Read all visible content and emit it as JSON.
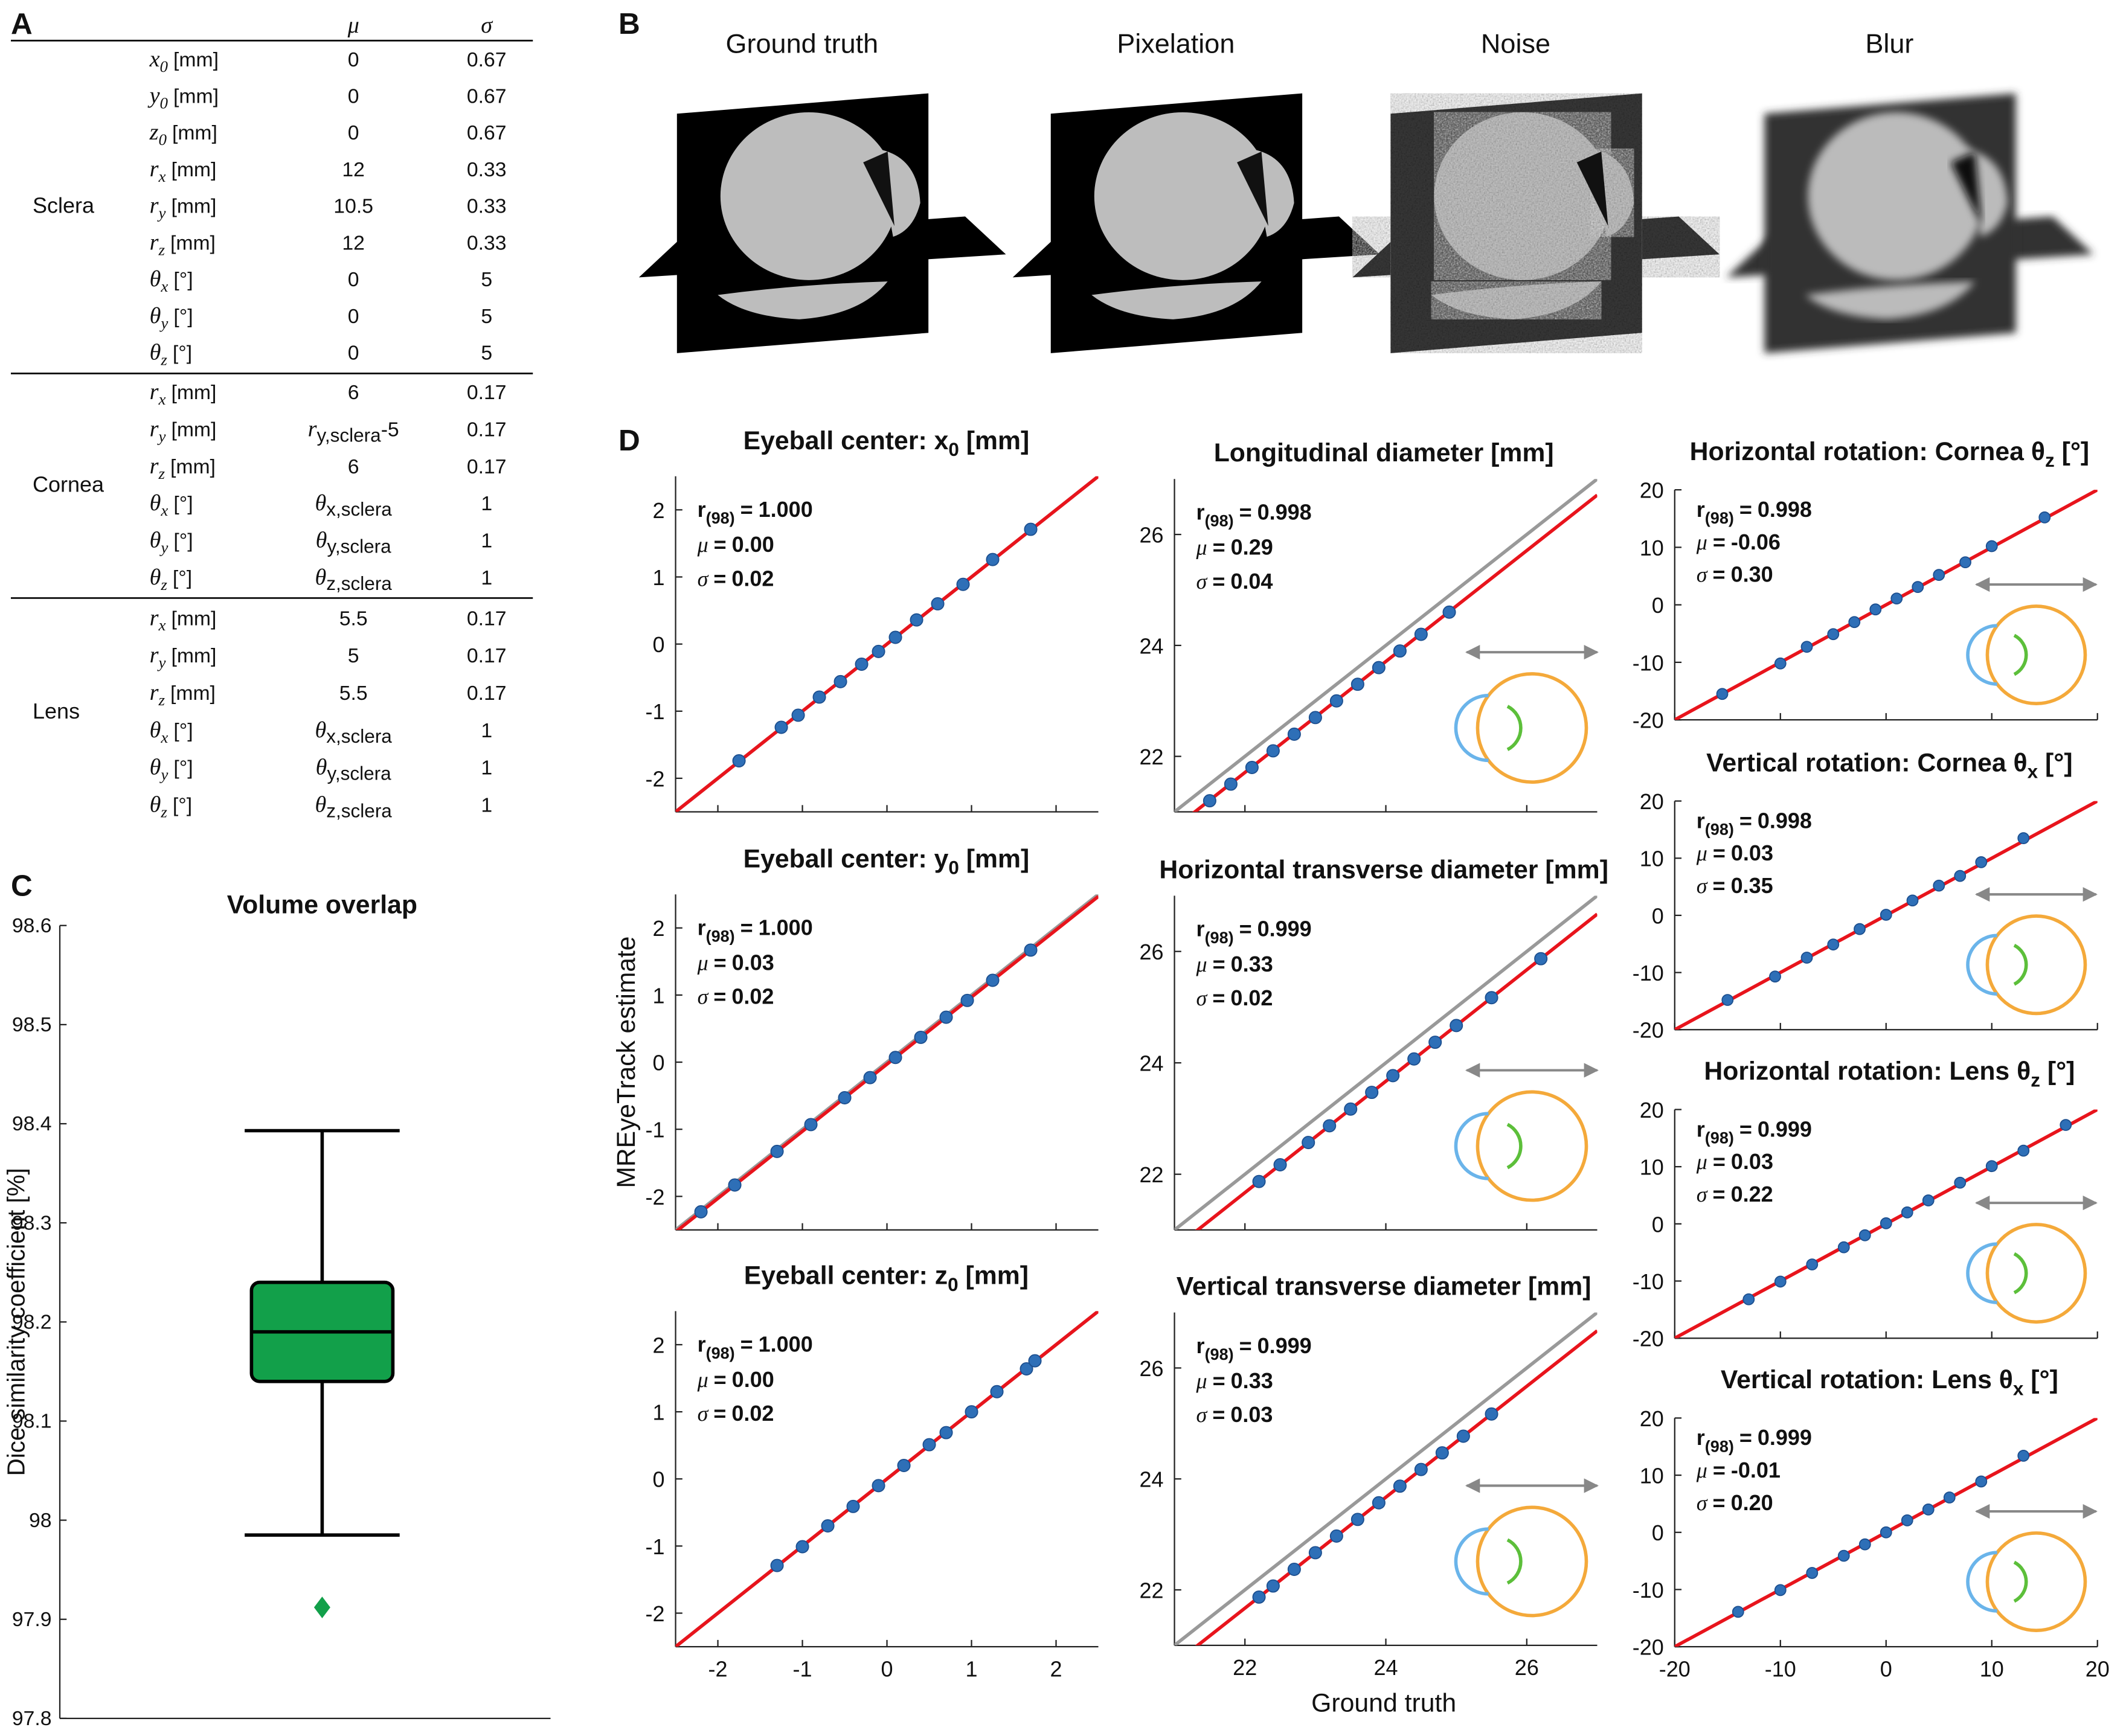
{
  "panel_labels": [
    "A",
    "B",
    "C",
    "D"
  ],
  "table": {
    "header": [
      "μ",
      "σ"
    ],
    "groups": [
      {
        "name": "Sclera",
        "rows": [
          {
            "param": {
              "sym": "x",
              "sub": "0",
              "unit": "[mm]"
            },
            "mu": "0",
            "sigma": "0.67"
          },
          {
            "param": {
              "sym": "y",
              "sub": "0",
              "unit": "[mm]"
            },
            "mu": "0",
            "sigma": "0.67"
          },
          {
            "param": {
              "sym": "z",
              "sub": "0",
              "unit": "[mm]"
            },
            "mu": "0",
            "sigma": "0.67"
          },
          {
            "param": {
              "sym": "r",
              "sub": "x",
              "unit": "[mm]"
            },
            "mu": "12",
            "sigma": "0.33"
          },
          {
            "param": {
              "sym": "r",
              "sub": "y",
              "unit": "[mm]"
            },
            "mu": "10.5",
            "sigma": "0.33"
          },
          {
            "param": {
              "sym": "r",
              "sub": "z",
              "unit": "[mm]"
            },
            "mu": "12",
            "sigma": "0.33"
          },
          {
            "param": {
              "sym": "θ",
              "sub": "x",
              "unit": "[°]"
            },
            "mu": "0",
            "sigma": "5"
          },
          {
            "param": {
              "sym": "θ",
              "sub": "y",
              "unit": "[°]"
            },
            "mu": "0",
            "sigma": "5"
          },
          {
            "param": {
              "sym": "θ",
              "sub": "z",
              "unit": "[°]"
            },
            "mu": "0",
            "sigma": "5"
          }
        ]
      },
      {
        "name": "Cornea",
        "rows": [
          {
            "param": {
              "sym": "r",
              "sub": "x",
              "unit": "[mm]"
            },
            "mu": "6",
            "sigma": "0.17"
          },
          {
            "param": {
              "sym": "r",
              "sub": "y",
              "unit": "[mm]"
            },
            "mu": {
              "sym": "r",
              "sub": "y,sclera",
              "suffix": "-5"
            },
            "sigma": "0.17"
          },
          {
            "param": {
              "sym": "r",
              "sub": "z",
              "unit": "[mm]"
            },
            "mu": "6",
            "sigma": "0.17"
          },
          {
            "param": {
              "sym": "θ",
              "sub": "x",
              "unit": "[°]"
            },
            "mu": {
              "sym": "θ",
              "sub": "x,sclera"
            },
            "sigma": "1"
          },
          {
            "param": {
              "sym": "θ",
              "sub": "y",
              "unit": "[°]"
            },
            "mu": {
              "sym": "θ",
              "sub": "y,sclera"
            },
            "sigma": "1"
          },
          {
            "param": {
              "sym": "θ",
              "sub": "z",
              "unit": "[°]"
            },
            "mu": {
              "sym": "θ",
              "sub": "z,sclera"
            },
            "sigma": "1"
          }
        ]
      },
      {
        "name": "Lens",
        "rows": [
          {
            "param": {
              "sym": "r",
              "sub": "x",
              "unit": "[mm]"
            },
            "mu": "5.5",
            "sigma": "0.17"
          },
          {
            "param": {
              "sym": "r",
              "sub": "y",
              "unit": "[mm]"
            },
            "mu": "5",
            "sigma": "0.17"
          },
          {
            "param": {
              "sym": "r",
              "sub": "z",
              "unit": "[mm]"
            },
            "mu": "5.5",
            "sigma": "0.17"
          },
          {
            "param": {
              "sym": "θ",
              "sub": "x",
              "unit": "[°]"
            },
            "mu": {
              "sym": "θ",
              "sub": "x,sclera"
            },
            "sigma": "1"
          },
          {
            "param": {
              "sym": "θ",
              "sub": "y",
              "unit": "[°]"
            },
            "mu": {
              "sym": "θ",
              "sub": "y,sclera"
            },
            "sigma": "1"
          },
          {
            "param": {
              "sym": "θ",
              "sub": "z",
              "unit": "[°]"
            },
            "mu": {
              "sym": "θ",
              "sub": "z,sclera"
            },
            "sigma": "1"
          }
        ]
      }
    ]
  },
  "images": {
    "titles": [
      "Ground truth",
      "Pixelation",
      "Noise",
      "Blur"
    ]
  },
  "boxplot": {
    "type": "box",
    "title": "Volume overlap",
    "ylabel": "Dice similarity coefficient [%]",
    "ylim": [
      97.8,
      98.6
    ],
    "yticks": [
      97.8,
      97.9,
      98,
      98.1,
      98.2,
      98.3,
      98.4,
      98.5,
      98.6
    ],
    "whisker_low": 97.985,
    "q1": 98.14,
    "median": 98.19,
    "q3": 98.24,
    "whisker_high": 98.393,
    "outliers": [
      97.912
    ],
    "color": "#12a04a"
  },
  "scatter": {
    "type": "scatter",
    "ylabel": "MREyeTrack estimate",
    "xlabel": "Ground truth",
    "stat_symbols": [
      "r",
      "μ",
      "σ"
    ],
    "stat_sub": "(98)",
    "equals": "=",
    "point_color": "#2e6fb7",
    "fit_color": "#e8141c",
    "identity_color": "#999999",
    "subplots": [
      {
        "title": {
          "text": "Eyeball center: x",
          "sub": "0",
          "suffix": " [mm]"
        },
        "stats": [
          "1.000",
          "0.00",
          "0.02"
        ],
        "xlim": [
          -2.5,
          2.5
        ],
        "ylim": [
          -2.5,
          2.5
        ],
        "xticks": [
          -2,
          -1,
          0,
          1,
          2
        ],
        "yticks": [
          -2,
          -1,
          0,
          1,
          2
        ],
        "show_xtick_labels": false,
        "identity_line": true,
        "fit": [
          1,
          0
        ],
        "x": [
          -1.75,
          -1.25,
          -1.05,
          -0.8,
          -0.55,
          -0.3,
          -0.1,
          0.1,
          0.35,
          0.6,
          0.9,
          1.25,
          1.7
        ],
        "y": [
          -1.74,
          -1.24,
          -1.06,
          -0.79,
          -0.56,
          -0.3,
          -0.11,
          0.1,
          0.36,
          0.6,
          0.89,
          1.26,
          1.71
        ]
      },
      {
        "title": {
          "text": "Eyeball center: y",
          "sub": "0",
          "suffix": " [mm]"
        },
        "stats": [
          "1.000",
          "0.03",
          "0.02"
        ],
        "xlim": [
          -2.5,
          2.5
        ],
        "ylim": [
          -2.5,
          2.5
        ],
        "xticks": [
          -2,
          -1,
          0,
          1,
          2
        ],
        "yticks": [
          -2,
          -1,
          0,
          1,
          2
        ],
        "show_xtick_labels": false,
        "identity_line": true,
        "fit": [
          1,
          -0.03
        ],
        "x": [
          -2.2,
          -1.8,
          -1.3,
          -0.9,
          -0.5,
          -0.2,
          0.1,
          0.4,
          0.7,
          0.95,
          1.25,
          1.7
        ],
        "y": [
          -2.23,
          -1.83,
          -1.33,
          -0.93,
          -0.53,
          -0.23,
          0.07,
          0.37,
          0.67,
          0.92,
          1.22,
          1.67
        ]
      },
      {
        "title": {
          "text": "Eyeball center: z",
          "sub": "0",
          "suffix": " [mm]"
        },
        "stats": [
          "1.000",
          "0.00",
          "0.02"
        ],
        "xlim": [
          -2.5,
          2.5
        ],
        "ylim": [
          -2.5,
          2.5
        ],
        "xticks": [
          -2,
          -1,
          0,
          1,
          2
        ],
        "yticks": [
          -2,
          -1,
          0,
          1,
          2
        ],
        "show_xtick_labels": true,
        "identity_line": true,
        "fit": [
          1,
          0
        ],
        "x": [
          -1.3,
          -1.0,
          -0.7,
          -0.4,
          -0.1,
          0.2,
          0.5,
          0.7,
          1.0,
          1.3,
          1.65,
          1.75
        ],
        "y": [
          -1.29,
          -1.01,
          -0.7,
          -0.41,
          -0.1,
          0.2,
          0.51,
          0.69,
          1.0,
          1.3,
          1.64,
          1.76
        ]
      },
      {
        "title": {
          "text": "Longitudinal diameter [mm]"
        },
        "stats": [
          "0.998",
          "0.29",
          "0.04"
        ],
        "xlim": [
          21,
          27
        ],
        "ylim": [
          21,
          27
        ],
        "xticks": [
          22,
          24,
          26
        ],
        "yticks": [
          22,
          24,
          26
        ],
        "show_xtick_labels": false,
        "identity_line": true,
        "fit": [
          1,
          -0.29
        ],
        "x": [
          21.5,
          21.8,
          22.1,
          22.4,
          22.7,
          23.0,
          23.3,
          23.6,
          23.9,
          24.2,
          24.5,
          24.9
        ],
        "y": [
          21.2,
          21.5,
          21.8,
          22.1,
          22.4,
          22.7,
          23.0,
          23.3,
          23.6,
          23.9,
          24.2,
          24.6
        ]
      },
      {
        "title": {
          "text": "Horizontal transverse diameter [mm]"
        },
        "stats": [
          "0.999",
          "0.33",
          "0.02"
        ],
        "xlim": [
          21,
          27
        ],
        "ylim": [
          21,
          27
        ],
        "xticks": [
          22,
          24,
          26
        ],
        "yticks": [
          22,
          24,
          26
        ],
        "show_xtick_labels": false,
        "identity_line": true,
        "fit": [
          1,
          -0.33
        ],
        "x": [
          22.2,
          22.5,
          22.9,
          23.2,
          23.5,
          23.8,
          24.1,
          24.4,
          24.7,
          25.0,
          25.5,
          26.2
        ],
        "y": [
          21.87,
          22.17,
          22.57,
          22.87,
          23.17,
          23.47,
          23.77,
          24.07,
          24.37,
          24.67,
          25.17,
          25.87
        ]
      },
      {
        "title": {
          "text": "Vertical transverse diameter [mm]"
        },
        "stats": [
          "0.999",
          "0.33",
          "0.03"
        ],
        "xlim": [
          21,
          27
        ],
        "ylim": [
          21,
          27
        ],
        "xticks": [
          22,
          24,
          26
        ],
        "yticks": [
          22,
          24,
          26
        ],
        "show_xtick_labels": true,
        "identity_line": true,
        "fit": [
          1,
          -0.33
        ],
        "x": [
          22.2,
          22.4,
          22.7,
          23.0,
          23.3,
          23.6,
          23.9,
          24.2,
          24.5,
          24.8,
          25.1,
          25.5
        ],
        "y": [
          21.87,
          22.07,
          22.37,
          22.67,
          22.97,
          23.27,
          23.57,
          23.87,
          24.17,
          24.47,
          24.77,
          25.17
        ]
      },
      {
        "title": {
          "text": "Horizontal rotation: Cornea θ",
          "sub": "z",
          "suffix": " [°]"
        },
        "stats": [
          "0.998",
          "-0.06",
          "0.30"
        ],
        "xlim": [
          -20,
          20
        ],
        "ylim": [
          -20,
          20
        ],
        "xticks": [
          -20,
          -10,
          0,
          10,
          20
        ],
        "yticks": [
          -20,
          -10,
          0,
          10,
          20
        ],
        "show_xtick_labels": false,
        "identity_line": false,
        "fit": [
          1,
          0
        ],
        "x": [
          -15.5,
          -10,
          -7.5,
          -5,
          -3,
          -1,
          1,
          3,
          5,
          7.5,
          10,
          15
        ],
        "y": [
          -15.5,
          -10.2,
          -7.3,
          -5.1,
          -3,
          -0.8,
          1.1,
          3.1,
          5.2,
          7.4,
          10.2,
          15.2
        ]
      },
      {
        "title": {
          "text": "Vertical rotation: Cornea θ",
          "sub": "x",
          "suffix": " [°]"
        },
        "stats": [
          "0.998",
          "0.03",
          "0.35"
        ],
        "xlim": [
          -20,
          20
        ],
        "ylim": [
          -20,
          20
        ],
        "xticks": [
          -20,
          -10,
          0,
          10,
          20
        ],
        "yticks": [
          -20,
          -10,
          0,
          10,
          20
        ],
        "show_xtick_labels": false,
        "identity_line": false,
        "fit": [
          1,
          0
        ],
        "x": [
          -15,
          -10.5,
          -7.5,
          -5,
          -2.5,
          0,
          2.5,
          5,
          7,
          9,
          13
        ],
        "y": [
          -14.8,
          -10.7,
          -7.4,
          -5.1,
          -2.4,
          0.1,
          2.6,
          5.2,
          6.9,
          9.3,
          13.5
        ]
      },
      {
        "title": {
          "text": "Horizontal rotation: Lens θ",
          "sub": "z",
          "suffix": " [°]"
        },
        "stats": [
          "0.999",
          "0.03",
          "0.22"
        ],
        "xlim": [
          -20,
          20
        ],
        "ylim": [
          -20,
          20
        ],
        "xticks": [
          -20,
          -10,
          0,
          10,
          20
        ],
        "yticks": [
          -20,
          -10,
          0,
          10,
          20
        ],
        "show_xtick_labels": false,
        "identity_line": false,
        "fit": [
          1,
          0
        ],
        "x": [
          -13,
          -10,
          -7,
          -4,
          -2,
          0,
          2,
          4,
          7,
          10,
          13,
          17
        ],
        "y": [
          -13.2,
          -10.1,
          -7.1,
          -4.1,
          -2,
          0.1,
          2,
          4.1,
          7.2,
          10.1,
          12.8,
          17.3
        ]
      },
      {
        "title": {
          "text": "Vertical rotation: Lens θ",
          "sub": "x",
          "suffix": " [°]"
        },
        "stats": [
          "0.999",
          "-0.01",
          "0.20"
        ],
        "xlim": [
          -20,
          20
        ],
        "ylim": [
          -20,
          20
        ],
        "xticks": [
          -20,
          -10,
          0,
          10,
          20
        ],
        "yticks": [
          -20,
          -10,
          0,
          10,
          20
        ],
        "show_xtick_labels": true,
        "identity_line": false,
        "fit": [
          1,
          0
        ],
        "x": [
          -14,
          -10,
          -7,
          -4,
          -2,
          0,
          2,
          4,
          6,
          9,
          13
        ],
        "y": [
          -13.9,
          -10.1,
          -7.1,
          -4.1,
          -2.1,
          0,
          2.1,
          4,
          6.1,
          8.9,
          13.4
        ]
      }
    ]
  }
}
